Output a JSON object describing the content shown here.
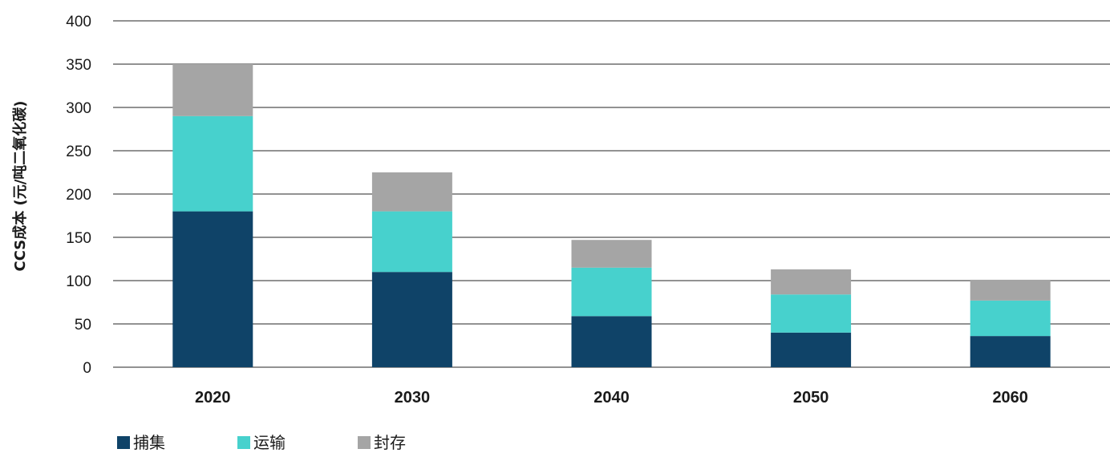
{
  "chart_data": {
    "type": "bar",
    "stacked": true,
    "categories": [
      "2020",
      "2030",
      "2040",
      "2050",
      "2060"
    ],
    "series": [
      {
        "name": "捕集",
        "color": "#0f4368",
        "values": [
          180,
          110,
          59,
          40,
          36
        ]
      },
      {
        "name": "运输",
        "color": "#47d1cd",
        "values": [
          110,
          70,
          56,
          44,
          41
        ]
      },
      {
        "name": "封存",
        "color": "#a5a5a5",
        "values": [
          60,
          45,
          32,
          29,
          24
        ]
      }
    ],
    "ylabel": "CCS成本 (元/吨二氧化碳)",
    "ylim": [
      0,
      400
    ],
    "yticks": [
      0,
      50,
      100,
      150,
      200,
      250,
      300,
      350,
      400
    ],
    "grid": true,
    "legend_position": "bottom-left"
  }
}
